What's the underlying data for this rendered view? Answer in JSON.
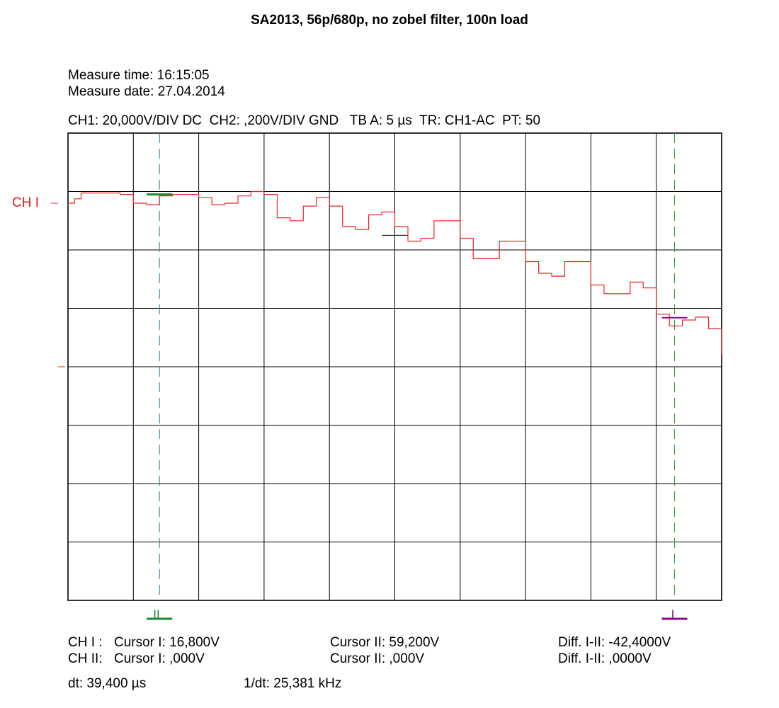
{
  "title": "SA2013, 56p/680p, no zobel filter, 100n load",
  "measure": {
    "time": "Measure time: 16:15:05",
    "date": "Measure date: 27.04.2014"
  },
  "settings": "CH1: 20,000V/DIV DC  CH2: ,200V/DIV GND   TB A: 5 µs  TR: CH1-AC  PT: 50",
  "channel_label": "CH I",
  "cursor_marks": {
    "cursor1": "II",
    "cursor2": "I"
  },
  "readout": {
    "ch1_label": "CH I :",
    "ch1_c1": "Cursor I: 16,800V",
    "ch1_c2": "Cursor II: 59,200V",
    "ch1_diff": "Diff. I-II: -42,4000V",
    "ch2_label": "CH II:",
    "ch2_c1": "Cursor I: ,000V",
    "ch2_c2": "Cursor II: ,000V",
    "ch2_diff": "Diff. I-II: ,0000V",
    "dt": "dt: 39,400 µs",
    "inv_dt": "1/dt: 25,381 kHz"
  },
  "colors": {
    "trace": "#ee2222",
    "channel_label": "#ee1111",
    "cursor1": "#1a8a2a",
    "cursor2": "#8a0a8a",
    "cursor1_line": "#2a7f8f",
    "cursor2_line": "#2a9a2a",
    "grid": "#000000"
  },
  "chart_data": {
    "type": "line",
    "title": "SA2013, 56p/680p, no zobel filter, 100n load",
    "x_unit": "µs",
    "xlim": [
      0,
      50
    ],
    "ylim": [
      -80,
      80
    ],
    "divisions": {
      "x": 10,
      "y": 8
    },
    "series": [
      {
        "x": [
          0,
          0.5,
          1,
          2,
          3,
          4,
          5,
          6,
          7,
          8,
          9,
          10,
          11,
          12,
          13,
          14,
          15,
          16,
          17,
          18,
          19,
          20,
          21,
          22,
          23,
          24,
          25,
          26,
          27,
          28,
          29,
          30,
          31,
          32,
          33,
          34,
          35,
          36,
          37,
          38,
          39,
          40,
          41,
          42,
          43,
          44,
          45,
          46,
          47,
          48,
          49,
          50
        ],
        "y": [
          56,
          57.5,
          59.5,
          59.5,
          59.5,
          59,
          56,
          55.5,
          58.5,
          59,
          59,
          58,
          55.5,
          56,
          58.5,
          60,
          59,
          51,
          50,
          55,
          58,
          55,
          48,
          47,
          52,
          53,
          48,
          43,
          44,
          50,
          50,
          44,
          37,
          37,
          43,
          43,
          36,
          32,
          31,
          36,
          36,
          28,
          25,
          25,
          29,
          27,
          18,
          14,
          16,
          17,
          13,
          4
        ]
      }
    ],
    "cursors": {
      "t1_us": 7,
      "t2_us": 46.4,
      "v1": 16.8,
      "v2": 59.2
    }
  }
}
